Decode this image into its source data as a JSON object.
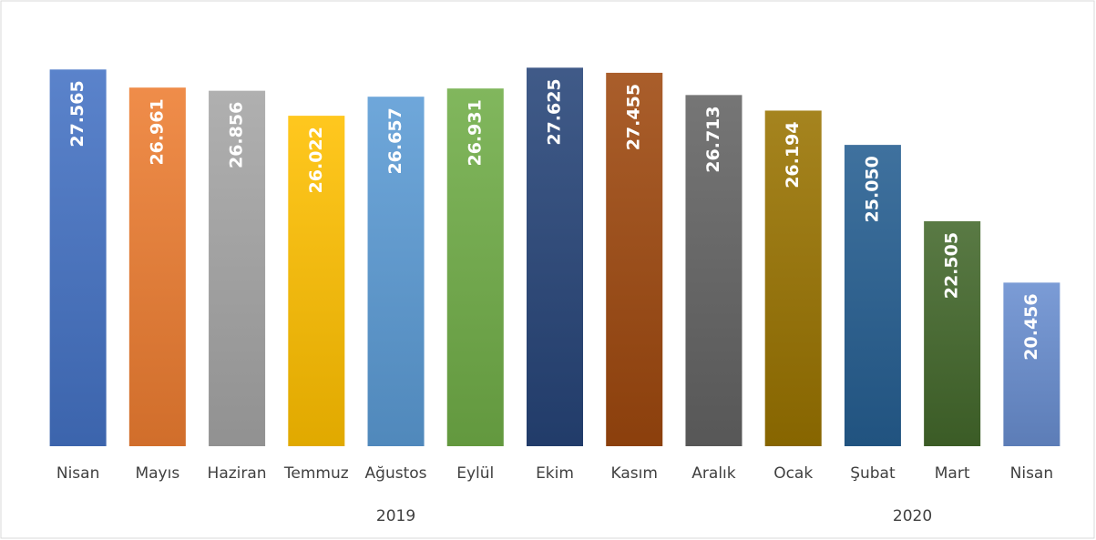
{
  "chart_data": {
    "type": "bar",
    "groups": [
      {
        "name": "2019",
        "categories": [
          "Nisan",
          "Mayıs",
          "Haziran",
          "Temmuz",
          "Ağustos",
          "Eylül",
          "Ekim",
          "Kasım",
          "Aralık"
        ]
      },
      {
        "name": "2020",
        "categories": [
          "Ocak",
          "Şubat",
          "Mart",
          "Nisan"
        ]
      }
    ],
    "values": [
      27565,
      26961,
      26856,
      26022,
      26657,
      26931,
      27625,
      27455,
      26713,
      26194,
      25050,
      22505,
      20456
    ],
    "value_labels": [
      "27.565",
      "26.961",
      "26.856",
      "26.022",
      "26.657",
      "26.931",
      "27.625",
      "27.455",
      "26.713",
      "26.194",
      "25.050",
      "22.505",
      "20.456"
    ],
    "colors": [
      "#4472c4",
      "#ed7d31",
      "#a5a5a5",
      "#ffc000",
      "#5b9bd5",
      "#70ad47",
      "#264478",
      "#9e480e",
      "#636363",
      "#997300",
      "#255e91",
      "#43682b",
      "#698ed0"
    ],
    "ylim": [
      15000,
      28000
    ]
  }
}
